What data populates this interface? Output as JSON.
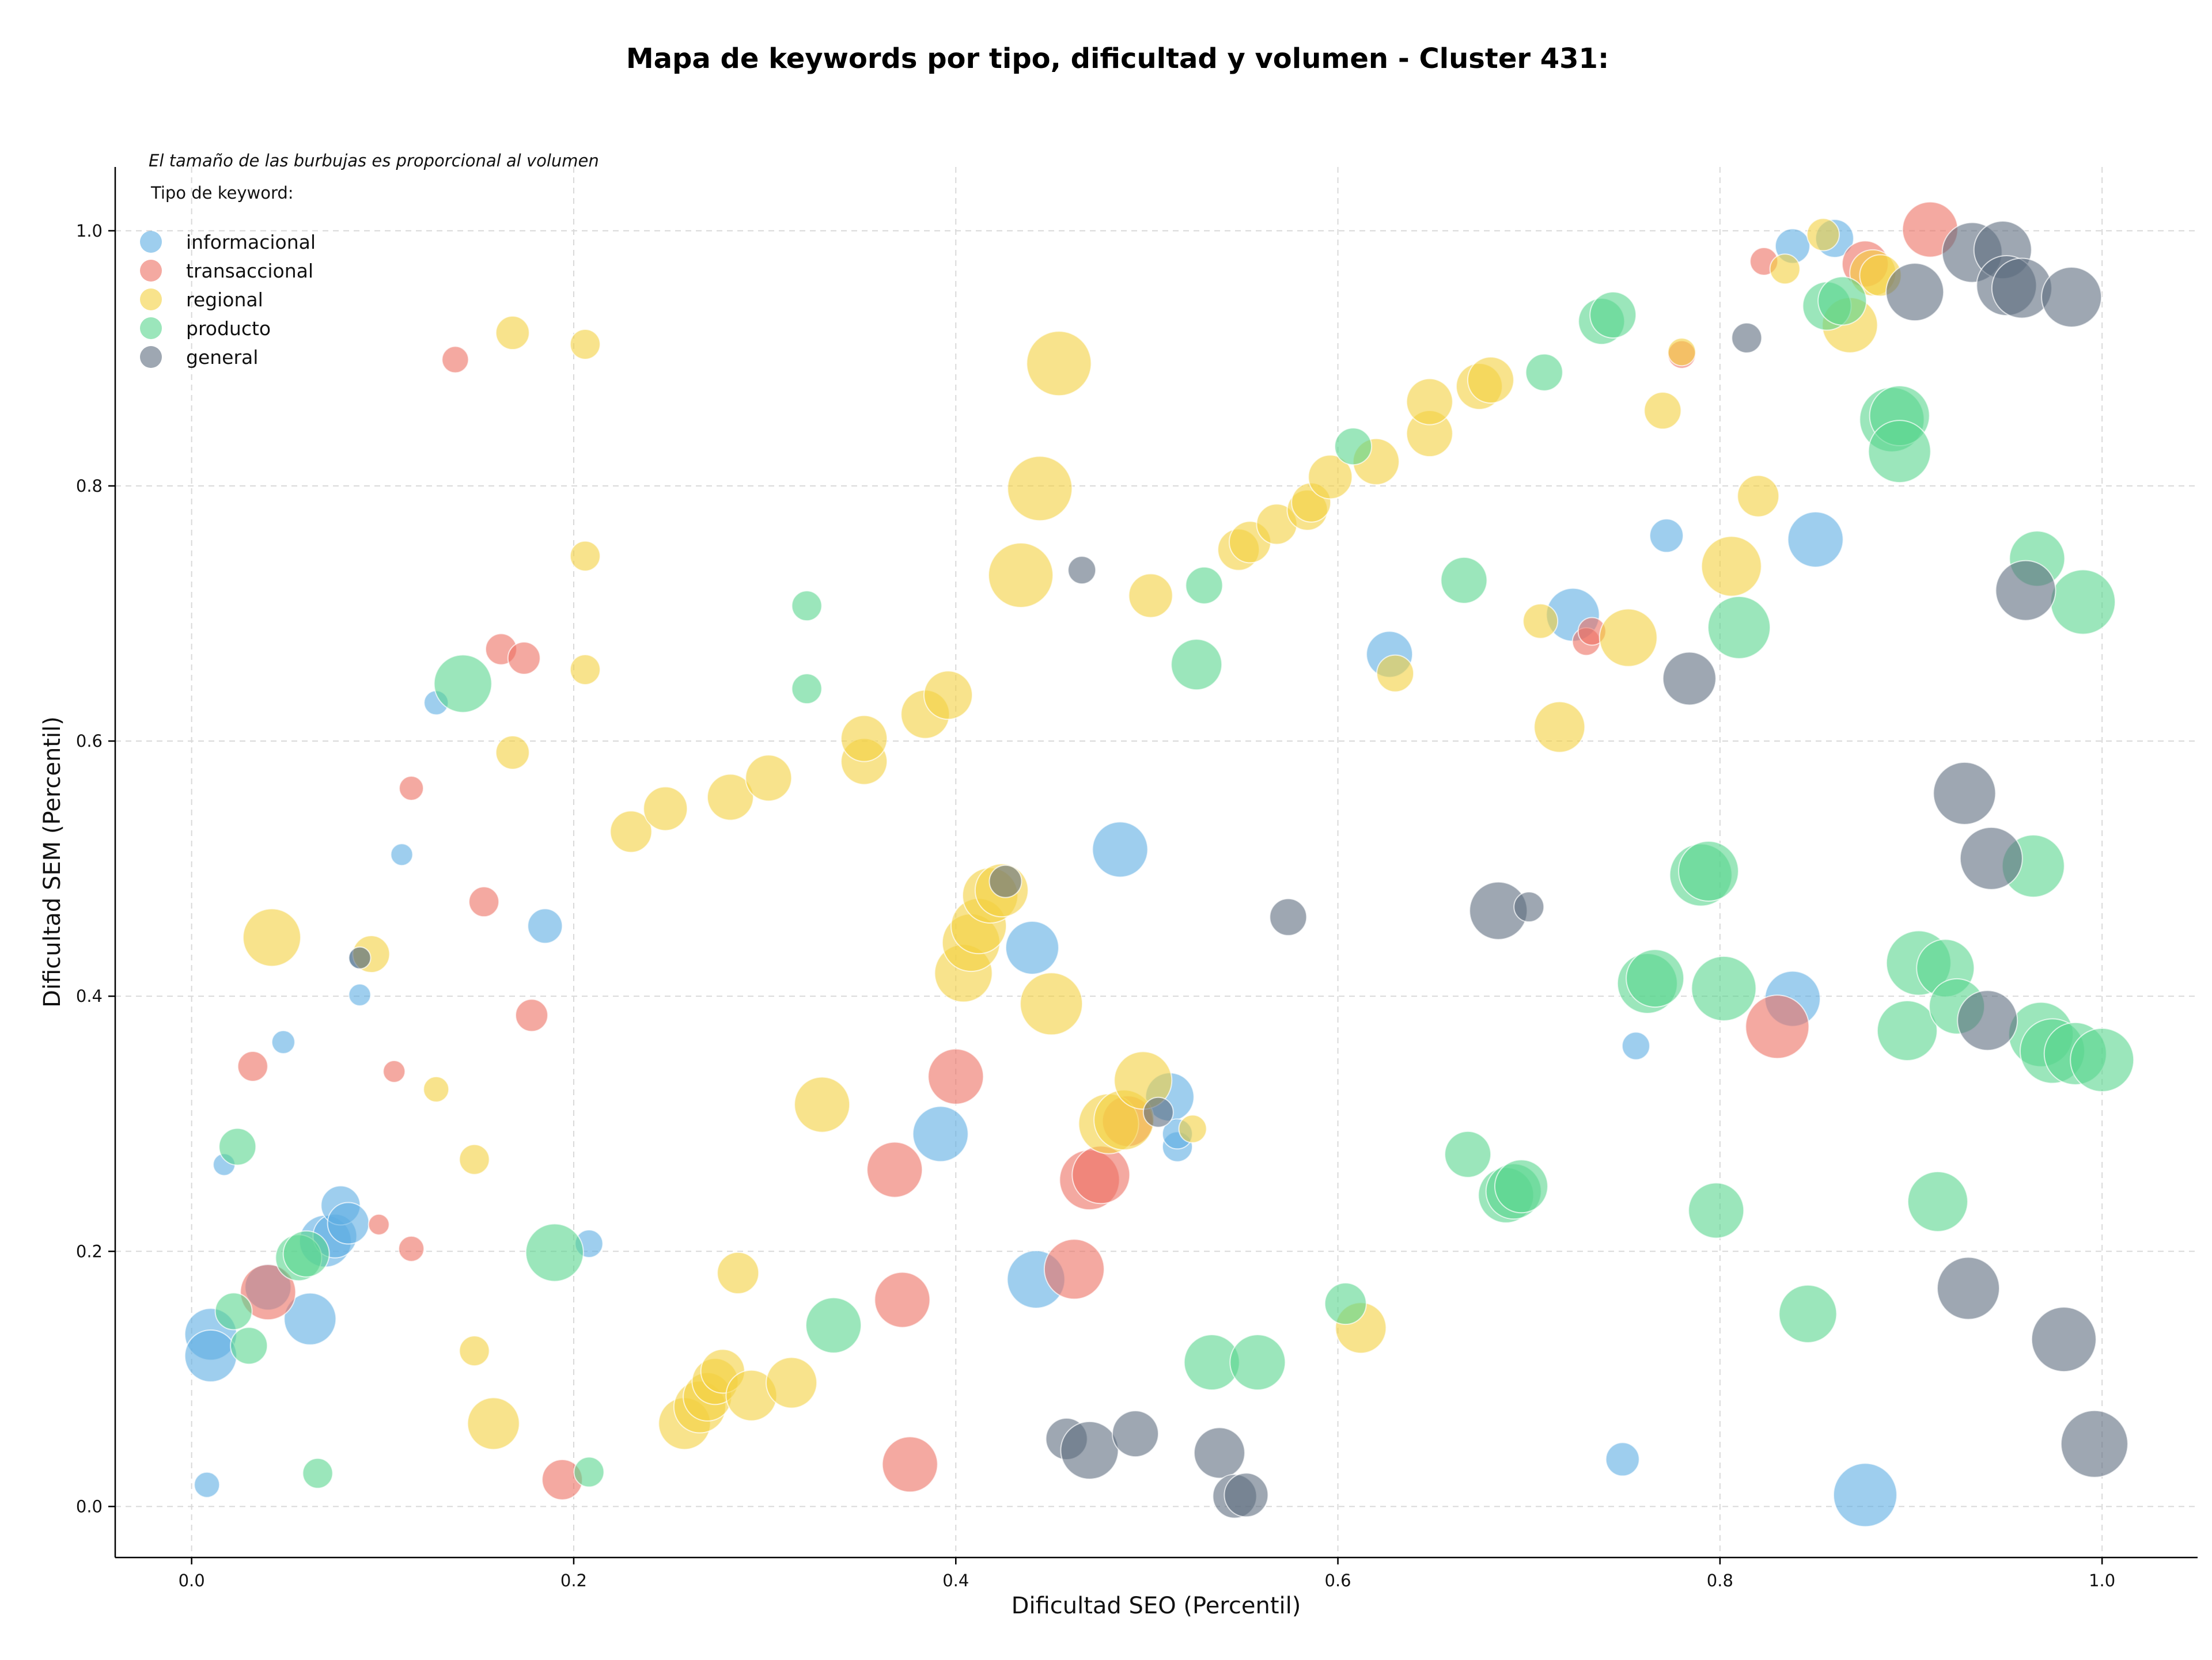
{
  "chart_data": {
    "type": "scatter",
    "title": "Mapa de keywords por tipo, dificultad y volumen - Cluster 431:",
    "xlabel": "Dificultad SEO (Percentil)",
    "ylabel": "Dificultad SEM (Percentil)",
    "xlim": [
      -0.04,
      1.05
    ],
    "ylim": [
      -0.04,
      1.05
    ],
    "xticks": [
      "0.0",
      "0.2",
      "0.4",
      "0.6",
      "0.8",
      "1.0"
    ],
    "yticks": [
      "0.0",
      "0.2",
      "0.4",
      "0.6",
      "0.8",
      "1.0"
    ],
    "grid": true,
    "note": "El tamaño de las burbujas es proporcional al volumen",
    "legend": {
      "title": "Tipo de keyword:",
      "placement": "top-left"
    },
    "series": [
      {
        "name": "informacional",
        "color": "#5DADE2",
        "points": [
          [
            0.008,
            0.017,
            22
          ],
          [
            0.01,
            0.135,
            45
          ],
          [
            0.01,
            0.118,
            45
          ],
          [
            0.04,
            0.172,
            40
          ],
          [
            0.048,
            0.364,
            20
          ],
          [
            0.062,
            0.147,
            45
          ],
          [
            0.07,
            0.208,
            45
          ],
          [
            0.075,
            0.212,
            38
          ],
          [
            0.078,
            0.236,
            34
          ],
          [
            0.082,
            0.222,
            36
          ],
          [
            0.017,
            0.268,
            19
          ],
          [
            0.088,
            0.401,
            19
          ],
          [
            0.088,
            0.43,
            19
          ],
          [
            0.11,
            0.511,
            19
          ],
          [
            0.128,
            0.63,
            21
          ],
          [
            0.185,
            0.455,
            30
          ],
          [
            0.208,
            0.206,
            24
          ],
          [
            0.392,
            0.292,
            48
          ],
          [
            0.44,
            0.438,
            46
          ],
          [
            0.442,
            0.178,
            50
          ],
          [
            0.486,
            0.515,
            48
          ],
          [
            0.512,
            0.321,
            42
          ],
          [
            0.516,
            0.282,
            26
          ],
          [
            0.516,
            0.292,
            26
          ],
          [
            0.627,
            0.668,
            40
          ],
          [
            0.723,
            0.699,
            46
          ],
          [
            0.772,
            0.761,
            29
          ],
          [
            0.756,
            0.361,
            24
          ],
          [
            0.749,
            0.037,
            29
          ],
          [
            0.838,
            0.398,
            48
          ],
          [
            0.85,
            0.758,
            48
          ],
          [
            0.876,
            0.009,
            55
          ],
          [
            0.838,
            0.988,
            30
          ],
          [
            0.86,
            0.994,
            33
          ]
        ]
      },
      {
        "name": "transaccional",
        "color": "#EC7063",
        "points": [
          [
            0.04,
            0.168,
            48
          ],
          [
            0.032,
            0.345,
            26
          ],
          [
            0.098,
            0.221,
            18
          ],
          [
            0.106,
            0.341,
            19
          ],
          [
            0.115,
            0.202,
            22
          ],
          [
            0.115,
            0.563,
            21
          ],
          [
            0.138,
            0.899,
            23
          ],
          [
            0.153,
            0.474,
            26
          ],
          [
            0.162,
            0.672,
            27
          ],
          [
            0.174,
            0.665,
            28
          ],
          [
            0.178,
            0.385,
            28
          ],
          [
            0.194,
            0.021,
            35
          ],
          [
            0.368,
            0.264,
            48
          ],
          [
            0.372,
            0.162,
            48
          ],
          [
            0.376,
            0.033,
            48
          ],
          [
            0.4,
            0.337,
            48
          ],
          [
            0.462,
            0.186,
            52
          ],
          [
            0.47,
            0.256,
            52
          ],
          [
            0.476,
            0.26,
            50
          ],
          [
            0.49,
            0.302,
            44
          ],
          [
            0.73,
            0.678,
            24
          ],
          [
            0.733,
            0.686,
            24
          ],
          [
            0.78,
            0.903,
            24
          ],
          [
            0.823,
            0.976,
            24
          ],
          [
            0.83,
            0.376,
            55
          ],
          [
            0.876,
            0.974,
            40
          ],
          [
            0.91,
            1.001,
            48
          ]
        ]
      },
      {
        "name": "regional",
        "color": "#F4D03F",
        "points": [
          [
            0.042,
            0.446,
            50
          ],
          [
            0.094,
            0.433,
            32
          ],
          [
            0.128,
            0.327,
            22
          ],
          [
            0.148,
            0.272,
            26
          ],
          [
            0.148,
            0.122,
            26
          ],
          [
            0.158,
            0.065,
            45
          ],
          [
            0.168,
            0.92,
            29
          ],
          [
            0.168,
            0.591,
            29
          ],
          [
            0.206,
            0.911,
            26
          ],
          [
            0.206,
            0.745,
            26
          ],
          [
            0.206,
            0.656,
            26
          ],
          [
            0.23,
            0.529,
            36
          ],
          [
            0.248,
            0.547,
            38
          ],
          [
            0.282,
            0.556,
            40
          ],
          [
            0.286,
            0.183,
            36
          ],
          [
            0.258,
            0.065,
            45
          ],
          [
            0.266,
            0.078,
            45
          ],
          [
            0.27,
            0.086,
            42
          ],
          [
            0.274,
            0.098,
            40
          ],
          [
            0.278,
            0.106,
            38
          ],
          [
            0.293,
            0.087,
            44
          ],
          [
            0.302,
            0.571,
            40
          ],
          [
            0.314,
            0.097,
            44
          ],
          [
            0.33,
            0.315,
            48
          ],
          [
            0.352,
            0.584,
            40
          ],
          [
            0.352,
            0.602,
            40
          ],
          [
            0.384,
            0.621,
            42
          ],
          [
            0.396,
            0.636,
            42
          ],
          [
            0.404,
            0.418,
            50
          ],
          [
            0.408,
            0.442,
            50
          ],
          [
            0.412,
            0.455,
            48
          ],
          [
            0.418,
            0.479,
            48
          ],
          [
            0.424,
            0.483,
            46
          ],
          [
            0.434,
            0.73,
            56
          ],
          [
            0.444,
            0.798,
            56
          ],
          [
            0.45,
            0.394,
            54
          ],
          [
            0.454,
            0.896,
            56
          ],
          [
            0.48,
            0.3,
            52
          ],
          [
            0.488,
            0.303,
            52
          ],
          [
            0.498,
            0.334,
            50
          ],
          [
            0.502,
            0.714,
            38
          ],
          [
            0.524,
            0.296,
            24
          ],
          [
            0.548,
            0.75,
            36
          ],
          [
            0.554,
            0.756,
            36
          ],
          [
            0.568,
            0.77,
            35
          ],
          [
            0.584,
            0.781,
            35
          ],
          [
            0.586,
            0.787,
            34
          ],
          [
            0.596,
            0.807,
            38
          ],
          [
            0.62,
            0.819,
            40
          ],
          [
            0.612,
            0.14,
            44
          ],
          [
            0.63,
            0.653,
            32
          ],
          [
            0.648,
            0.841,
            40
          ],
          [
            0.648,
            0.866,
            40
          ],
          [
            0.674,
            0.878,
            40
          ],
          [
            0.68,
            0.883,
            40
          ],
          [
            0.706,
            0.694,
            30
          ],
          [
            0.716,
            0.611,
            44
          ],
          [
            0.752,
            0.681,
            50
          ],
          [
            0.77,
            0.859,
            32
          ],
          [
            0.78,
            0.905,
            24
          ],
          [
            0.806,
            0.737,
            52
          ],
          [
            0.82,
            0.792,
            36
          ],
          [
            0.834,
            0.97,
            26
          ],
          [
            0.854,
            0.997,
            28
          ],
          [
            0.868,
            0.926,
            48
          ],
          [
            0.88,
            0.967,
            40
          ],
          [
            0.884,
            0.965,
            36
          ]
        ]
      },
      {
        "name": "producto",
        "color": "#58D68D",
        "points": [
          [
            0.022,
            0.153,
            32
          ],
          [
            0.024,
            0.282,
            32
          ],
          [
            0.03,
            0.126,
            32
          ],
          [
            0.056,
            0.195,
            40
          ],
          [
            0.06,
            0.198,
            40
          ],
          [
            0.066,
            0.026,
            26
          ],
          [
            0.142,
            0.645,
            50
          ],
          [
            0.19,
            0.199,
            50
          ],
          [
            0.208,
            0.027,
            26
          ],
          [
            0.322,
            0.706,
            26
          ],
          [
            0.322,
            0.641,
            26
          ],
          [
            0.336,
            0.142,
            48
          ],
          [
            0.526,
            0.66,
            44
          ],
          [
            0.53,
            0.722,
            32
          ],
          [
            0.534,
            0.113,
            48
          ],
          [
            0.558,
            0.113,
            48
          ],
          [
            0.604,
            0.159,
            36
          ],
          [
            0.608,
            0.831,
            32
          ],
          [
            0.666,
            0.726,
            40
          ],
          [
            0.668,
            0.276,
            40
          ],
          [
            0.688,
            0.244,
            48
          ],
          [
            0.692,
            0.247,
            48
          ],
          [
            0.696,
            0.251,
            46
          ],
          [
            0.708,
            0.889,
            32
          ],
          [
            0.738,
            0.929,
            40
          ],
          [
            0.744,
            0.934,
            40
          ],
          [
            0.762,
            0.41,
            52
          ],
          [
            0.766,
            0.414,
            50
          ],
          [
            0.79,
            0.495,
            54
          ],
          [
            0.794,
            0.498,
            52
          ],
          [
            0.798,
            0.232,
            48
          ],
          [
            0.802,
            0.406,
            56
          ],
          [
            0.81,
            0.689,
            54
          ],
          [
            0.846,
            0.151,
            50
          ],
          [
            0.856,
            0.941,
            42
          ],
          [
            0.864,
            0.945,
            42
          ],
          [
            0.89,
            0.852,
            56
          ],
          [
            0.894,
            0.855,
            52
          ],
          [
            0.894,
            0.827,
            54
          ],
          [
            0.898,
            0.373,
            52
          ],
          [
            0.904,
            0.426,
            56
          ],
          [
            0.914,
            0.239,
            52
          ],
          [
            0.918,
            0.422,
            50
          ],
          [
            0.924,
            0.392,
            48
          ],
          [
            0.964,
            0.502,
            54
          ],
          [
            0.966,
            0.743,
            48
          ],
          [
            0.968,
            0.37,
            56
          ],
          [
            0.974,
            0.357,
            56
          ],
          [
            0.986,
            0.355,
            54
          ],
          [
            0.99,
            0.709,
            56
          ],
          [
            1.0,
            0.35,
            55
          ]
        ]
      },
      {
        "name": "general",
        "color": "#5D6D7E",
        "points": [
          [
            0.088,
            0.43,
            19
          ],
          [
            0.426,
            0.49,
            28
          ],
          [
            0.466,
            0.734,
            24
          ],
          [
            0.458,
            0.053,
            36
          ],
          [
            0.47,
            0.044,
            50
          ],
          [
            0.494,
            0.057,
            40
          ],
          [
            0.506,
            0.309,
            26
          ],
          [
            0.538,
            0.042,
            44
          ],
          [
            0.546,
            0.008,
            38
          ],
          [
            0.552,
            0.009,
            38
          ],
          [
            0.574,
            0.462,
            32
          ],
          [
            0.684,
            0.467,
            50
          ],
          [
            0.7,
            0.47,
            26
          ],
          [
            0.784,
            0.649,
            46
          ],
          [
            0.814,
            0.916,
            26
          ],
          [
            0.902,
            0.952,
            50
          ],
          [
            0.928,
            0.559,
            54
          ],
          [
            0.93,
            0.171,
            54
          ],
          [
            0.932,
            0.983,
            52
          ],
          [
            0.94,
            0.381,
            52
          ],
          [
            0.942,
            0.508,
            54
          ],
          [
            0.948,
            0.985,
            50
          ],
          [
            0.95,
            0.957,
            52
          ],
          [
            0.958,
            0.955,
            52
          ],
          [
            0.96,
            0.718,
            52
          ],
          [
            0.98,
            0.131,
            56
          ],
          [
            0.984,
            0.948,
            52
          ],
          [
            0.996,
            0.049,
            58
          ]
        ]
      }
    ]
  }
}
